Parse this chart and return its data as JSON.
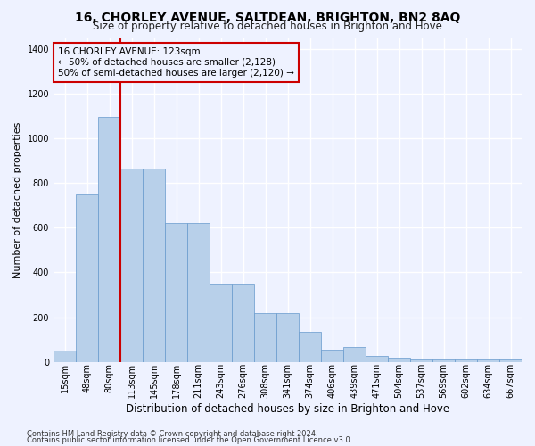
{
  "title": "16, CHORLEY AVENUE, SALTDEAN, BRIGHTON, BN2 8AQ",
  "subtitle": "Size of property relative to detached houses in Brighton and Hove",
  "xlabel": "Distribution of detached houses by size in Brighton and Hove",
  "ylabel": "Number of detached properties",
  "footnote1": "Contains HM Land Registry data © Crown copyright and database right 2024.",
  "footnote2": "Contains public sector information licensed under the Open Government Licence v3.0.",
  "categories": [
    "15sqm",
    "48sqm",
    "80sqm",
    "113sqm",
    "145sqm",
    "178sqm",
    "211sqm",
    "243sqm",
    "276sqm",
    "308sqm",
    "341sqm",
    "374sqm",
    "406sqm",
    "439sqm",
    "471sqm",
    "504sqm",
    "537sqm",
    "569sqm",
    "602sqm",
    "634sqm",
    "667sqm"
  ],
  "bar_heights": [
    50,
    750,
    1095,
    865,
    865,
    620,
    620,
    350,
    350,
    220,
    220,
    135,
    55,
    65,
    25,
    20,
    12,
    10,
    10,
    10,
    12
  ],
  "bar_color": "#b8d0ea",
  "bar_edge_color": "#6699cc",
  "vline_color": "#cc0000",
  "vline_x": 2.5,
  "annotation_line1": "16 CHORLEY AVENUE: 123sqm",
  "annotation_line2": "← 50% of detached houses are smaller (2,128)",
  "annotation_line3": "50% of semi-detached houses are larger (2,120) →",
  "ylim": [
    0,
    1450
  ],
  "yticks": [
    0,
    200,
    400,
    600,
    800,
    1000,
    1200,
    1400
  ],
  "background_color": "#eef2ff",
  "grid_color": "#ffffff",
  "title_fontsize": 10,
  "subtitle_fontsize": 8.5,
  "xlabel_fontsize": 8.5,
  "ylabel_fontsize": 8,
  "tick_fontsize": 7,
  "annot_fontsize": 7.5,
  "footnote_fontsize": 6
}
